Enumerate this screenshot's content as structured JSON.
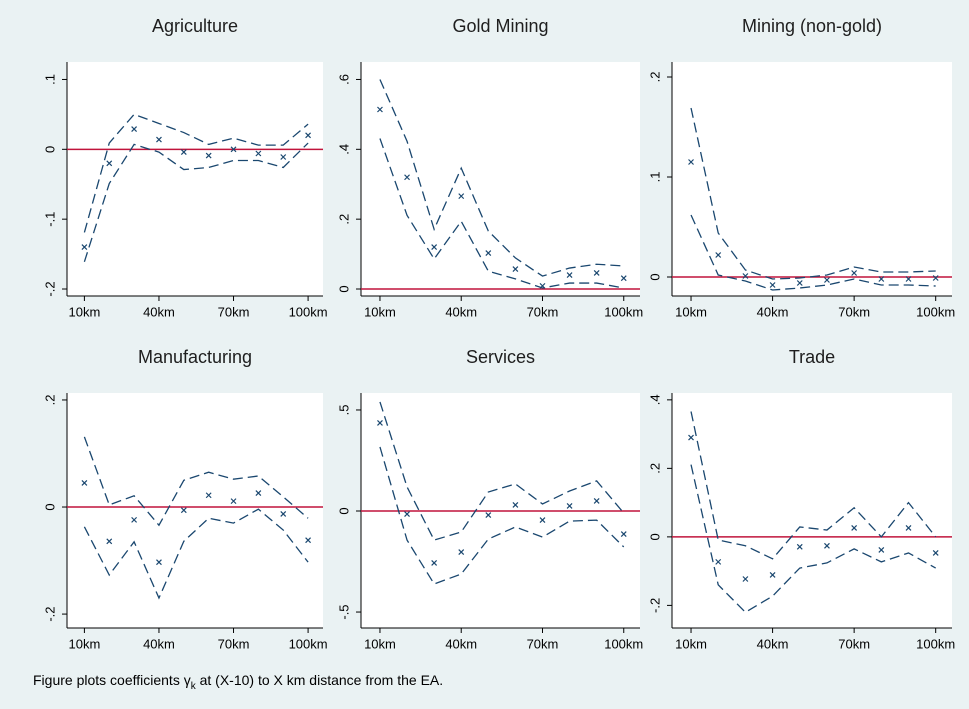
{
  "chart_data": [
    {
      "type": "line",
      "title": "Agriculture",
      "x": [
        10,
        20,
        30,
        40,
        50,
        60,
        70,
        80,
        90,
        100
      ],
      "xlim": [
        3,
        106
      ],
      "xticks": [
        {
          "value": 10,
          "label": "10km"
        },
        {
          "value": 40,
          "label": "40km"
        },
        {
          "value": 70,
          "label": "70km"
        },
        {
          "value": 100,
          "label": "100km"
        }
      ],
      "ylim": [
        -0.21,
        0.125
      ],
      "yticks": [
        {
          "value": -0.2,
          "label": "-.2"
        },
        {
          "value": -0.1,
          "label": "-.1"
        },
        0,
        {
          "value": 0.1,
          "label": ".1"
        }
      ],
      "refline": 0,
      "refline_color": "#c0143c",
      "grid": false,
      "series": [
        {
          "color": "#1a476f",
          "style": "dashed",
          "values": [
            -0.119,
            0.009,
            0.05,
            0.037,
            0.024,
            0.007,
            0.016,
            0.006,
            0.006,
            0.036
          ]
        },
        {
          "color": "#1a476f",
          "style": "dashed",
          "values": [
            -0.161,
            -0.049,
            0.007,
            -0.004,
            -0.029,
            -0.026,
            -0.016,
            -0.016,
            -0.026,
            0.009
          ]
        },
        {
          "color": "#1a476f",
          "style": "marker",
          "values": [
            -0.14,
            -0.02,
            0.029,
            0.014,
            -0.004,
            -0.009,
            0,
            -0.006,
            -0.011,
            0.02
          ]
        }
      ]
    },
    {
      "type": "line",
      "title": "Gold Mining",
      "x": [
        10,
        20,
        30,
        40,
        50,
        60,
        70,
        80,
        90,
        100
      ],
      "xlim": [
        3,
        106
      ],
      "xticks": [
        {
          "value": 10,
          "label": "10km"
        },
        {
          "value": 40,
          "label": "40km"
        },
        {
          "value": 70,
          "label": "70km"
        },
        {
          "value": 100,
          "label": "100km"
        }
      ],
      "ylim": [
        -0.02,
        0.65
      ],
      "yticks": [
        0,
        {
          "value": 0.2,
          "label": ".2"
        },
        {
          "value": 0.4,
          "label": ".4"
        },
        {
          "value": 0.6,
          "label": ".6"
        }
      ],
      "refline": 0,
      "refline_color": "#c0143c",
      "grid": false,
      "series": [
        {
          "color": "#1a476f",
          "style": "dashed",
          "values": [
            0.6,
            0.423,
            0.171,
            0.346,
            0.166,
            0.089,
            0.037,
            0.06,
            0.071,
            0.066
          ]
        },
        {
          "color": "#1a476f",
          "style": "dashed",
          "values": [
            0.431,
            0.211,
            0.086,
            0.194,
            0.051,
            0.029,
            0.003,
            0.017,
            0.017,
            0.003
          ]
        },
        {
          "color": "#1a476f",
          "style": "marker",
          "values": [
            0.514,
            0.32,
            0.12,
            0.266,
            0.103,
            0.057,
            0.009,
            0.04,
            0.046,
            0.031
          ]
        }
      ]
    },
    {
      "type": "line",
      "title": "Mining (non-gold)",
      "x": [
        10,
        20,
        30,
        40,
        50,
        60,
        70,
        80,
        90,
        100
      ],
      "xlim": [
        3,
        106
      ],
      "xticks": [
        {
          "value": 10,
          "label": "10km"
        },
        {
          "value": 40,
          "label": "40km"
        },
        {
          "value": 70,
          "label": "70km"
        },
        {
          "value": 100,
          "label": "100km"
        }
      ],
      "ylim": [
        -0.019,
        0.215
      ],
      "yticks": [
        0,
        {
          "value": 0.1,
          "label": ".1"
        },
        {
          "value": 0.2,
          "label": ".2"
        }
      ],
      "refline": 0,
      "refline_color": "#c0143c",
      "grid": false,
      "series": [
        {
          "color": "#1a476f",
          "style": "dashed",
          "values": [
            0.169,
            0.044,
            0.007,
            -0.002,
            -0.001,
            0.002,
            0.01,
            0.005,
            0.005,
            0.006
          ]
        },
        {
          "color": "#1a476f",
          "style": "dashed",
          "values": [
            0.062,
            0.002,
            -0.004,
            -0.013,
            -0.011,
            -0.008,
            -0.002,
            -0.008,
            -0.008,
            -0.009
          ]
        },
        {
          "color": "#1a476f",
          "style": "marker",
          "values": [
            0.115,
            0.022,
            0.001,
            -0.008,
            -0.006,
            -0.003,
            0.004,
            -0.002,
            -0.002,
            -0.001
          ]
        }
      ]
    },
    {
      "type": "line",
      "title": "Manufacturing",
      "x": [
        10,
        20,
        30,
        40,
        50,
        60,
        70,
        80,
        90,
        100
      ],
      "xlim": [
        3,
        106
      ],
      "xticks": [
        {
          "value": 10,
          "label": "10km"
        },
        {
          "value": 40,
          "label": "40km"
        },
        {
          "value": 70,
          "label": "70km"
        },
        {
          "value": 100,
          "label": "100km"
        }
      ],
      "ylim": [
        -0.226,
        0.213
      ],
      "yticks": [
        {
          "value": -0.2,
          "label": "-.2"
        },
        0,
        {
          "value": 0.2,
          "label": ".2"
        }
      ],
      "refline": 0,
      "refline_color": "#c0143c",
      "grid": false,
      "series": [
        {
          "color": "#1a476f",
          "style": "dashed",
          "values": [
            0.131,
            0.004,
            0.021,
            -0.034,
            0.05,
            0.065,
            0.052,
            0.058,
            0.019,
            -0.021
          ]
        },
        {
          "color": "#1a476f",
          "style": "dashed",
          "values": [
            -0.037,
            -0.127,
            -0.065,
            -0.17,
            -0.064,
            -0.021,
            -0.03,
            -0.004,
            -0.043,
            -0.103
          ]
        },
        {
          "color": "#1a476f",
          "style": "marker",
          "values": [
            0.045,
            -0.064,
            -0.024,
            -0.103,
            -0.006,
            0.022,
            0.011,
            0.026,
            -0.013,
            -0.062
          ]
        }
      ]
    },
    {
      "type": "line",
      "title": "Services",
      "x": [
        10,
        20,
        30,
        40,
        50,
        60,
        70,
        80,
        90,
        100
      ],
      "xlim": [
        3,
        106
      ],
      "xticks": [
        {
          "value": 10,
          "label": "10km"
        },
        {
          "value": 40,
          "label": "40km"
        },
        {
          "value": 70,
          "label": "70km"
        },
        {
          "value": 100,
          "label": "100km"
        }
      ],
      "ylim": [
        -0.579,
        0.584
      ],
      "yticks": [
        {
          "value": -0.5,
          "label": "-.5"
        },
        0,
        {
          "value": 0.5,
          "label": ".5"
        }
      ],
      "refline": 0,
      "refline_color": "#c0143c",
      "grid": false,
      "series": [
        {
          "color": "#1a476f",
          "style": "dashed",
          "values": [
            0.54,
            0.119,
            -0.144,
            -0.104,
            0.094,
            0.134,
            0.035,
            0.099,
            0.149,
            -0.01
          ]
        },
        {
          "color": "#1a476f",
          "style": "dashed",
          "values": [
            0.317,
            -0.144,
            -0.361,
            -0.312,
            -0.139,
            -0.079,
            -0.129,
            -0.05,
            -0.045,
            -0.178
          ]
        },
        {
          "color": "#1a476f",
          "style": "marker",
          "values": [
            0.436,
            -0.015,
            -0.257,
            -0.203,
            -0.02,
            0.03,
            -0.045,
            0.025,
            0.05,
            -0.114
          ]
        }
      ]
    },
    {
      "type": "line",
      "title": "Trade",
      "x": [
        10,
        20,
        30,
        40,
        50,
        60,
        70,
        80,
        90,
        100
      ],
      "xlim": [
        3,
        106
      ],
      "xticks": [
        {
          "value": 10,
          "label": "10km"
        },
        {
          "value": 40,
          "label": "40km"
        },
        {
          "value": 70,
          "label": "70km"
        },
        {
          "value": 100,
          "label": "100km"
        }
      ],
      "ylim": [
        -0.266,
        0.42
      ],
      "yticks": [
        {
          "value": -0.2,
          "label": "-.2"
        },
        0,
        {
          "value": 0.2,
          "label": ".2"
        },
        {
          "value": 0.4,
          "label": ".4"
        }
      ],
      "refline": 0,
      "refline_color": "#c0143c",
      "grid": false,
      "series": [
        {
          "color": "#1a476f",
          "style": "dashed",
          "values": [
            0.366,
            -0.009,
            -0.026,
            -0.064,
            0.029,
            0.02,
            0.085,
            0,
            0.1,
            0
          ]
        },
        {
          "color": "#1a476f",
          "style": "dashed",
          "values": [
            0.211,
            -0.14,
            -0.22,
            -0.173,
            -0.091,
            -0.076,
            -0.035,
            -0.073,
            -0.047,
            -0.091
          ]
        },
        {
          "color": "#1a476f",
          "style": "marker",
          "values": [
            0.29,
            -0.073,
            -0.123,
            -0.111,
            -0.029,
            -0.026,
            0.026,
            -0.038,
            0.026,
            -0.047
          ]
        }
      ]
    }
  ],
  "note": {
    "before": "Figure plots coefficients γ",
    "sub": "k",
    "after": " at (X-10) to X km distance from the EA."
  }
}
